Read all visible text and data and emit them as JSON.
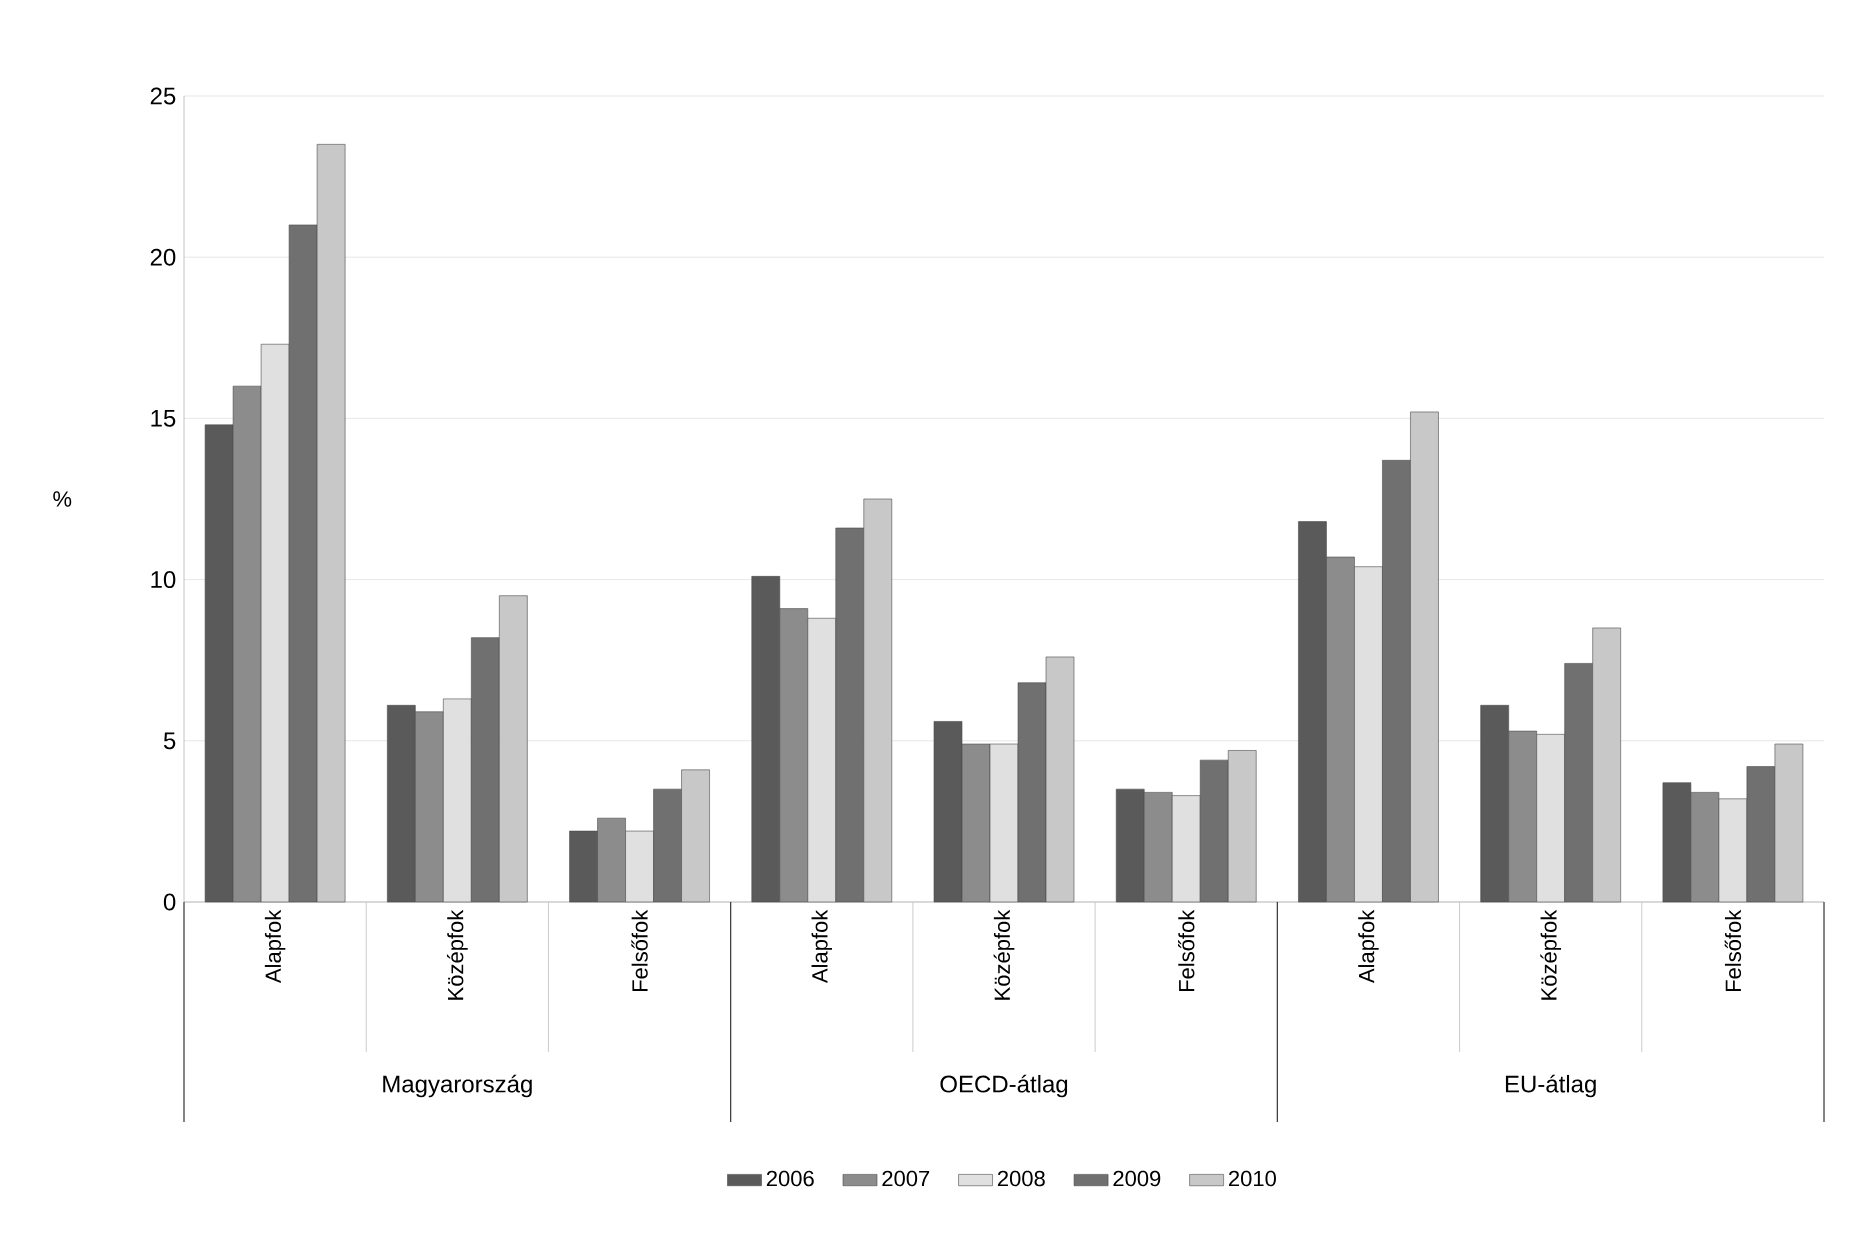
{
  "chart_data": {
    "type": "bar",
    "ylabel": "%",
    "categories": [
      "Alapfok",
      "Középfok",
      "Felsőfok",
      "Alapfok",
      "Középfok",
      "Felsőfok",
      "Alapfok",
      "Középfok",
      "Felsőfok"
    ],
    "annotations": [
      "Magyarország",
      "OECD-átlag",
      "EU-átlag"
    ],
    "series": [
      {
        "name": "2006",
        "color": "#5a5a5a",
        "values": [
          14.8,
          6.1,
          2.2,
          10.1,
          5.6,
          3.5,
          11.8,
          6.1,
          3.7
        ]
      },
      {
        "name": "2007",
        "color": "#8c8c8c",
        "values": [
          16.0,
          5.9,
          2.6,
          9.1,
          4.9,
          3.4,
          10.7,
          5.3,
          3.4
        ]
      },
      {
        "name": "2008",
        "color": "#e0e0e0",
        "values": [
          17.3,
          6.3,
          2.2,
          8.8,
          4.9,
          3.3,
          10.4,
          5.2,
          3.2
        ]
      },
      {
        "name": "2009",
        "color": "#707070",
        "values": [
          21.0,
          8.2,
          3.5,
          11.6,
          6.8,
          4.4,
          13.7,
          7.4,
          4.2
        ]
      },
      {
        "name": "2010",
        "color": "#c8c8c8",
        "values": [
          23.5,
          9.5,
          4.1,
          12.5,
          7.6,
          4.7,
          15.2,
          8.5,
          4.9
        ]
      }
    ],
    "ylim": [
      0,
      25
    ],
    "yticks": [
      0,
      5,
      10,
      15,
      20,
      25
    ],
    "grid": "y",
    "legend": "bottom"
  }
}
